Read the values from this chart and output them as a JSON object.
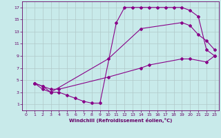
{
  "background_color": "#c8eaea",
  "grid_color": "#b0c8c8",
  "line_color": "#880088",
  "marker_color": "#880088",
  "xlabel": "Windchill (Refroidissement éolien,°C)",
  "xlabel_color": "#660066",
  "tick_color": "#660066",
  "xlim": [
    -0.5,
    23.5
  ],
  "ylim": [
    0,
    18
  ],
  "xticks": [
    0,
    1,
    2,
    3,
    4,
    5,
    6,
    7,
    8,
    9,
    10,
    11,
    12,
    13,
    14,
    15,
    16,
    17,
    18,
    19,
    20,
    21,
    22,
    23
  ],
  "yticks": [
    1,
    3,
    5,
    7,
    9,
    11,
    13,
    15,
    17
  ],
  "curve1_x": [
    1,
    2,
    3,
    4,
    5,
    6,
    7,
    8,
    9,
    11,
    12,
    13,
    14,
    15,
    16,
    17,
    18,
    19,
    20,
    21,
    22,
    23
  ],
  "curve1_y": [
    4.5,
    3.5,
    3,
    3,
    2.5,
    2,
    1.5,
    1.2,
    1.2,
    14.5,
    17,
    17,
    17,
    17,
    17,
    17,
    17,
    17,
    16.5,
    15.5,
    10,
    9
  ],
  "curve2_x": [
    1,
    2,
    3,
    10,
    14,
    19,
    20,
    21,
    22,
    23
  ],
  "curve2_y": [
    4.5,
    4,
    3,
    8.5,
    13.5,
    14.5,
    14,
    12.5,
    11.5,
    10
  ],
  "curve3_x": [
    1,
    2,
    3,
    4,
    10,
    14,
    15,
    19,
    20,
    22,
    23
  ],
  "curve3_y": [
    4.5,
    4,
    3.5,
    3.5,
    5.5,
    7,
    7.5,
    8.5,
    8.5,
    8,
    9
  ]
}
